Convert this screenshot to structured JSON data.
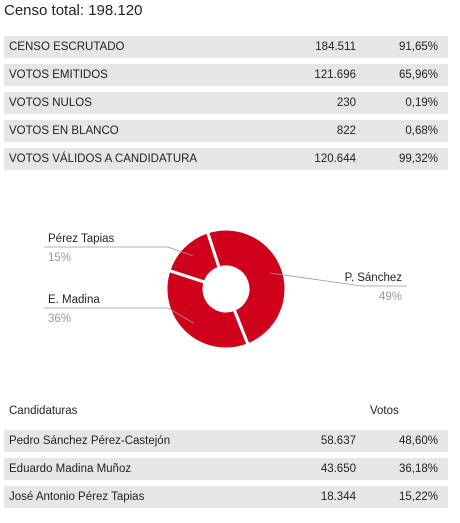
{
  "census": {
    "label": "Censo total: 198.120"
  },
  "stats": [
    {
      "label": "CENSO ESCRUTADO",
      "count": "184.511",
      "pct": "91,65%"
    },
    {
      "label": "VOTOS EMITIDOS",
      "count": "121.696",
      "pct": "65,96%"
    },
    {
      "label": "VOTOS NULOS",
      "count": "230",
      "pct": "0,19%"
    },
    {
      "label": "VOTOS EN BLANCO",
      "count": "822",
      "pct": "0,68%"
    },
    {
      "label": "VOTOS VÁLIDOS A CANDIDATURA",
      "count": "120.644",
      "pct": "99,32%"
    }
  ],
  "chart_data": {
    "type": "pie",
    "variant": "donut",
    "color": "#d0021b",
    "slices": [
      {
        "label": "P. Sánchez",
        "value": 49,
        "value_label": "49%"
      },
      {
        "label": "E. Madina",
        "value": 36,
        "value_label": "36%"
      },
      {
        "label": "Pérez Tapias",
        "value": 15,
        "value_label": "15%"
      }
    ]
  },
  "candidates": {
    "header_name": "Candidaturas",
    "header_votes": "Votos",
    "rows": [
      {
        "name": "Pedro Sánchez Pérez-Castejón",
        "votes": "58.637",
        "pct": "48,60%"
      },
      {
        "name": "Eduardo Madina Muñoz",
        "votes": "43.650",
        "pct": "36,18%"
      },
      {
        "name": "José Antonio Pérez Tapias",
        "votes": "18.344",
        "pct": "15,22%"
      }
    ]
  }
}
